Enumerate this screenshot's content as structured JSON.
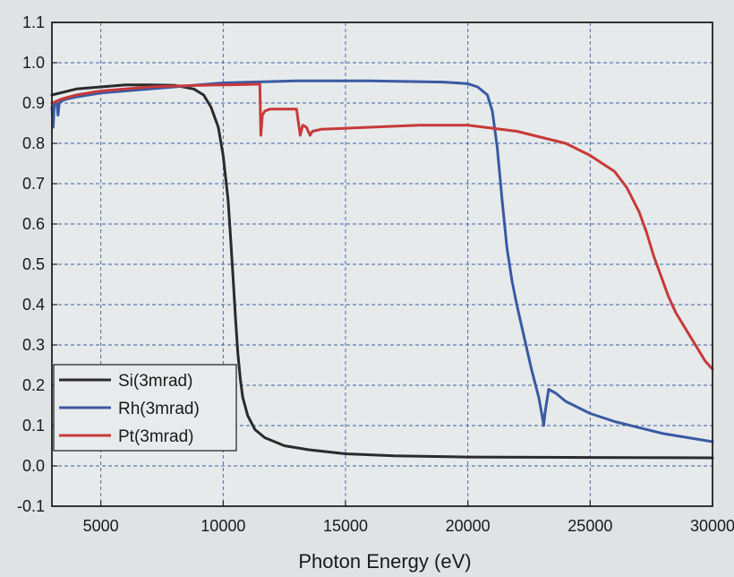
{
  "chart_data": {
    "type": "line",
    "title": "",
    "xlabel": "Photon Energy (eV)",
    "ylabel": "",
    "xlim": [
      3000,
      30000
    ],
    "ylim": [
      -0.1,
      1.1
    ],
    "x_ticks": [
      5000,
      10000,
      15000,
      20000,
      25000,
      30000
    ],
    "x_tick_labels": [
      "5000",
      "10000",
      "15000",
      "20000",
      "25000",
      "30000"
    ],
    "y_ticks": [
      -0.1,
      0.0,
      0.1,
      0.2,
      0.3,
      0.4,
      0.5,
      0.6,
      0.7,
      0.8,
      0.9,
      1.0,
      1.1
    ],
    "y_tick_labels": [
      "-0.1",
      "0.0",
      "0.1",
      "0.2",
      "0.3",
      "0.4",
      "0.5",
      "0.6",
      "0.7",
      "0.8",
      "0.9",
      "1.0",
      "1.1"
    ],
    "grid": true,
    "legend_position": "bottom-left",
    "series": [
      {
        "name": "Si(3mrad)",
        "color": "#2b2b2b",
        "x": [
          3000,
          4000,
          5000,
          6000,
          7000,
          8000,
          8800,
          9200,
          9500,
          9800,
          10000,
          10200,
          10300,
          10400,
          10500,
          10600,
          10700,
          10800,
          11000,
          11300,
          11700,
          12500,
          13500,
          15000,
          17000,
          20000,
          25000,
          30000
        ],
        "y": [
          0.92,
          0.935,
          0.94,
          0.945,
          0.945,
          0.944,
          0.935,
          0.92,
          0.89,
          0.84,
          0.77,
          0.66,
          0.57,
          0.47,
          0.37,
          0.28,
          0.215,
          0.17,
          0.125,
          0.09,
          0.07,
          0.05,
          0.04,
          0.03,
          0.025,
          0.022,
          0.021,
          0.02
        ]
      },
      {
        "name": "Rh(3mrad)",
        "color": "#3a5aa3",
        "x": [
          3000,
          3050,
          3100,
          3200,
          3250,
          3300,
          3400,
          3600,
          4000,
          5000,
          6000,
          8000,
          10000,
          13000,
          16000,
          19000,
          20000,
          20400,
          20800,
          21000,
          21200,
          21400,
          21600,
          21800,
          22000,
          22300,
          22600,
          22900,
          23050,
          23100,
          23150,
          23300,
          23600,
          24000,
          25000,
          26000,
          27000,
          28000,
          29000,
          30000
        ],
        "y": [
          0.89,
          0.84,
          0.9,
          0.9,
          0.87,
          0.9,
          0.905,
          0.91,
          0.915,
          0.925,
          0.93,
          0.94,
          0.95,
          0.955,
          0.955,
          0.952,
          0.948,
          0.94,
          0.92,
          0.88,
          0.79,
          0.66,
          0.54,
          0.46,
          0.4,
          0.32,
          0.24,
          0.17,
          0.12,
          0.1,
          0.13,
          0.19,
          0.18,
          0.16,
          0.13,
          0.11,
          0.095,
          0.08,
          0.07,
          0.06
        ]
      },
      {
        "name": "Pt(3mrad)",
        "color": "#c8393a",
        "x": [
          3000,
          3200,
          3400,
          4000,
          5000,
          6000,
          7000,
          8000,
          9000,
          10000,
          11000,
          11500,
          11540,
          11600,
          11700,
          11900,
          12400,
          13000,
          13150,
          13250,
          13400,
          13550,
          13650,
          14000,
          16000,
          18000,
          20000,
          22000,
          24000,
          25000,
          26000,
          26500,
          27000,
          27300,
          27600,
          27900,
          28200,
          28500,
          28900,
          29300,
          29700,
          30000
        ],
        "y": [
          0.9,
          0.905,
          0.91,
          0.92,
          0.93,
          0.935,
          0.94,
          0.942,
          0.944,
          0.945,
          0.946,
          0.947,
          0.82,
          0.87,
          0.88,
          0.885,
          0.885,
          0.885,
          0.82,
          0.845,
          0.84,
          0.82,
          0.83,
          0.835,
          0.84,
          0.845,
          0.845,
          0.83,
          0.8,
          0.77,
          0.73,
          0.69,
          0.63,
          0.58,
          0.52,
          0.47,
          0.42,
          0.38,
          0.34,
          0.3,
          0.26,
          0.24
        ]
      }
    ]
  }
}
